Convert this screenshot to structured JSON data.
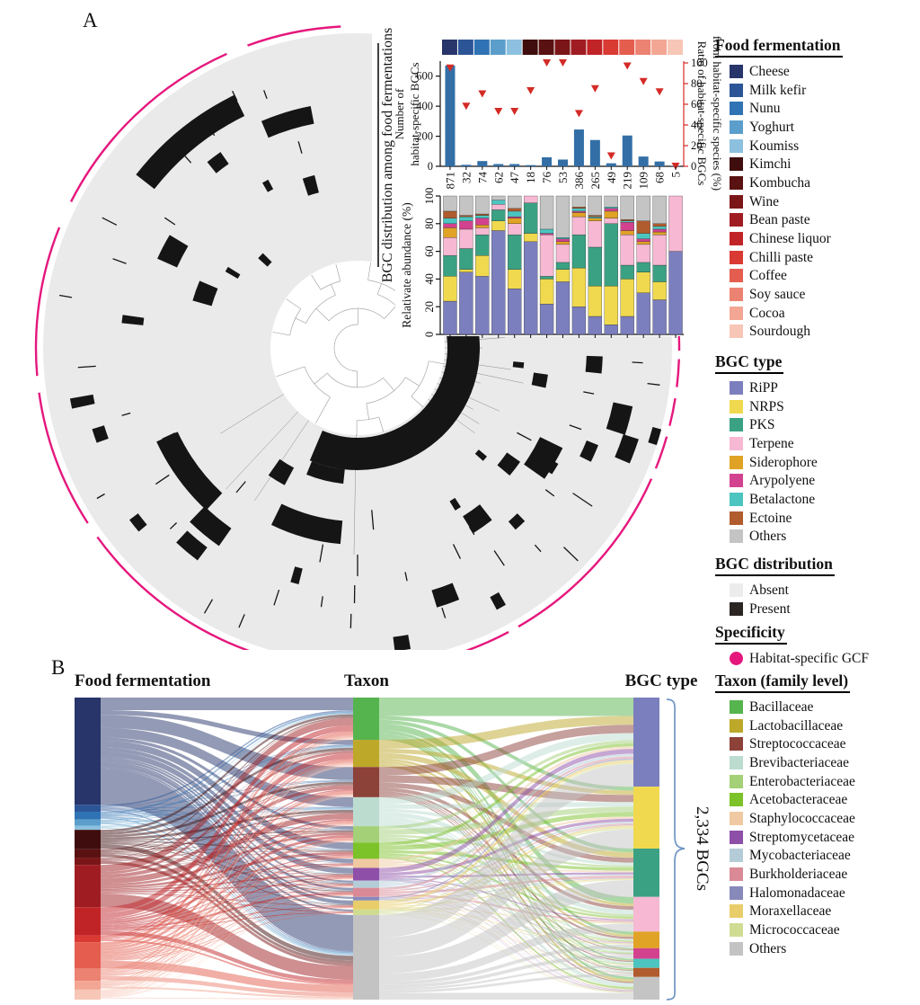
{
  "panels": {
    "a_label": "A",
    "b_label": "B"
  },
  "legends": [
    {
      "id": "food",
      "title": "Food fermentation",
      "items": [
        {
          "label": "Cheese",
          "color": "#27356b"
        },
        {
          "label": "Milk kefir",
          "color": "#2c5597"
        },
        {
          "label": "Nunu",
          "color": "#3073b4"
        },
        {
          "label": "Yoghurt",
          "color": "#5b9ecb"
        },
        {
          "label": "Koumiss",
          "color": "#8cc0de"
        },
        {
          "label": "Kimchi",
          "color": "#3f0d0d"
        },
        {
          "label": "Kombucha",
          "color": "#5a1111"
        },
        {
          "label": "Wine",
          "color": "#7b1618"
        },
        {
          "label": "Bean paste",
          "color": "#9f1d22"
        },
        {
          "label": "Chinese liquor",
          "color": "#c02427"
        },
        {
          "label": "Chilli paste",
          "color": "#d93a33"
        },
        {
          "label": "Coffee",
          "color": "#e45d4e"
        },
        {
          "label": "Soy sauce",
          "color": "#ec8271"
        },
        {
          "label": "Cocoa",
          "color": "#f2a693"
        },
        {
          "label": "Sourdough",
          "color": "#f7c6b6"
        }
      ]
    },
    {
      "id": "bgc_type",
      "title": "BGC type",
      "items": [
        {
          "label": "RiPP",
          "color": "#7b7fbd"
        },
        {
          "label": "NRPS",
          "color": "#f0d94e"
        },
        {
          "label": "PKS",
          "color": "#3ba183"
        },
        {
          "label": "Terpene",
          "color": "#f6b8d2"
        },
        {
          "label": "Siderophore",
          "color": "#e0a326"
        },
        {
          "label": "Arypolyene",
          "color": "#d2428e"
        },
        {
          "label": "Betalactone",
          "color": "#4cc5c0"
        },
        {
          "label": "Ectoine",
          "color": "#b05c2e"
        },
        {
          "label": "Others",
          "color": "#c4c4c4"
        }
      ]
    },
    {
      "id": "bgc_distribution",
      "title": "BGC distribution",
      "items": [
        {
          "label": "Absent",
          "color": "#ececec"
        },
        {
          "label": "Present",
          "color": "#2b2523"
        }
      ]
    },
    {
      "id": "specificity",
      "title": "Specificity",
      "items": [
        {
          "label": "Habitat-specific GCF",
          "color": "#e5177d",
          "shape": "circle"
        }
      ]
    },
    {
      "id": "taxon",
      "title": "Taxon (family level)",
      "items": [
        {
          "label": "Bacillaceae",
          "color": "#55b44e"
        },
        {
          "label": "Lactobacillaceae",
          "color": "#bda829"
        },
        {
          "label": "Streptococcaceae",
          "color": "#8c4139"
        },
        {
          "label": "Brevibacteriaceae",
          "color": "#bcdcd0"
        },
        {
          "label": "Enterobacteriaceae",
          "color": "#a4d077"
        },
        {
          "label": "Acetobacteraceae",
          "color": "#7cc229"
        },
        {
          "label": "Staphylococcaceae",
          "color": "#f0c9a2"
        },
        {
          "label": "Streptomycetaceae",
          "color": "#8e4fa8"
        },
        {
          "label": "Mycobacteriaceae",
          "color": "#b4ccd8"
        },
        {
          "label": "Burkholderiaceae",
          "color": "#d98a96"
        },
        {
          "label": "Halomonadaceae",
          "color": "#8789bb"
        },
        {
          "label": "Moraxellaceae",
          "color": "#e8cd6a"
        },
        {
          "label": "Micrococcaceae",
          "color": "#cfdc91"
        },
        {
          "label": "Others",
          "color": "#c3c3c3"
        }
      ]
    }
  ],
  "chart_data": [
    {
      "id": "habitat_specific_bgcs",
      "type": "bar",
      "categories": [
        "871",
        "32",
        "74",
        "62",
        "47",
        "18",
        "76",
        "53",
        "386",
        "265",
        "49",
        "219",
        "109",
        "68",
        "5"
      ],
      "values": [
        670,
        10,
        35,
        15,
        15,
        8,
        60,
        45,
        245,
        175,
        20,
        205,
        65,
        32,
        3
      ],
      "ratio_markers": [
        95,
        58,
        70,
        53,
        53,
        73,
        100,
        100,
        51,
        75,
        10,
        97,
        82,
        72,
        0
      ],
      "ylabel_line1": "Number of",
      "ylabel_line2": "habitat-specific BGCs",
      "y2label_line1": "Ratio of habitat-specific BGCs",
      "y2label_line2": "from habitat-specific species (%)",
      "yticks": [
        0,
        200,
        400,
        600
      ],
      "ylim": [
        0,
        700
      ],
      "y2ticks": [
        0,
        20,
        40,
        60,
        80,
        100
      ],
      "y2lim": [
        0,
        100
      ],
      "bar_color": "#336fa6",
      "marker_color": "#d42b26",
      "legend_position": "none"
    },
    {
      "id": "relative_abundance",
      "type": "stacked_bar",
      "categories": [
        "871",
        "32",
        "74",
        "62",
        "47",
        "18",
        "76",
        "53",
        "386",
        "265",
        "49",
        "219",
        "109",
        "68",
        "5"
      ],
      "series_order": [
        "RiPP",
        "NRPS",
        "PKS",
        "Terpene",
        "Siderophore",
        "Arypolyene",
        "Betalactone",
        "Ectoine",
        "Others"
      ],
      "stacks": [
        [
          24,
          18,
          15,
          13,
          7,
          3,
          4,
          5,
          11
        ],
        [
          45,
          2,
          15,
          14,
          0,
          6,
          3,
          1,
          14
        ],
        [
          42,
          15,
          15,
          5,
          2,
          5,
          2,
          1,
          13
        ],
        [
          75,
          7,
          8,
          4,
          0,
          0,
          3,
          0,
          3
        ],
        [
          33,
          14,
          25,
          8,
          4,
          1,
          4,
          2,
          9
        ],
        [
          67,
          6,
          22,
          5,
          0,
          0,
          0,
          0,
          0
        ],
        [
          22,
          18,
          2,
          30,
          0,
          1,
          3,
          0,
          24
        ],
        [
          38,
          9,
          5,
          13,
          2,
          2,
          1,
          0,
          30
        ],
        [
          20,
          28,
          24,
          13,
          3,
          1,
          2,
          1,
          8
        ],
        [
          13,
          22,
          28,
          19,
          2,
          0,
          1,
          1,
          14
        ],
        [
          7,
          28,
          45,
          4,
          5,
          2,
          1,
          0,
          8
        ],
        [
          13,
          27,
          10,
          22,
          3,
          6,
          1,
          1,
          17
        ],
        [
          30,
          15,
          7,
          13,
          2,
          2,
          4,
          9,
          18
        ],
        [
          25,
          13,
          12,
          22,
          2,
          2,
          2,
          2,
          20
        ],
        [
          60,
          0,
          0,
          40,
          0,
          0,
          0,
          0,
          0
        ]
      ],
      "ylabel": "Relativate abundance  (%)",
      "yticks": [
        0,
        20,
        40,
        60,
        80,
        100
      ],
      "ylim": [
        0,
        100
      ]
    },
    {
      "id": "bgc_sankey",
      "type": "sankey",
      "total_label": "2,334 BGCs",
      "columns": [
        {
          "title": "Food fermentation",
          "legend_ref": "food",
          "fractions": [
            0.355,
            0.023,
            0.026,
            0.02,
            0.014,
            0.064,
            0.029,
            0.023,
            0.14,
            0.093,
            0.023,
            0.087,
            0.041,
            0.029,
            0.033
          ]
        },
        {
          "title": "Taxon",
          "legend_ref": "taxon",
          "fractions": [
            0.14,
            0.09,
            0.1,
            0.096,
            0.054,
            0.054,
            0.03,
            0.042,
            0.024,
            0.03,
            0.012,
            0.03,
            0.018,
            0.28
          ]
        },
        {
          "title": "BGC type",
          "legend_ref": "bgc_type",
          "fractions": [
            0.295,
            0.205,
            0.16,
            0.115,
            0.055,
            0.035,
            0.03,
            0.03,
            0.075
          ]
        }
      ]
    },
    {
      "id": "circular_bgc_presence",
      "type": "heatmap",
      "axis_label": "BGC distribution among food fermentations",
      "absent_color": "#eaeaea",
      "present_color": "#151515",
      "specific_color": "#e5177d",
      "magenta_segments": [
        [
          357,
          360.5
        ],
        [
          2,
          7
        ],
        [
          9,
          14
        ],
        [
          16,
          22
        ],
        [
          24,
          60
        ],
        [
          62,
          94
        ],
        [
          97,
          144
        ],
        [
          147,
          172
        ],
        [
          175,
          202
        ],
        [
          207,
          246
        ],
        [
          250,
          267
        ]
      ],
      "marks": [
        [
          218,
          26,
          300,
          26
        ],
        [
          204,
          7,
          232,
          24
        ],
        [
          247,
          12,
          264,
          20
        ],
        [
          231,
          4,
          258,
          16
        ],
        [
          133,
          22,
          234,
          26
        ],
        [
          95,
          21,
          206,
          26
        ],
        [
          196,
          7,
          180,
          22
        ],
        [
          252,
          4,
          188,
          20
        ],
        [
          26,
          9,
          240,
          28
        ],
        [
          12,
          6,
          302,
          22
        ],
        [
          18,
          5,
          320,
          18
        ],
        [
          8,
          4,
          206,
          16
        ],
        [
          52,
          6,
          232,
          22
        ],
        [
          35,
          5,
          212,
          18
        ],
        [
          118,
          7,
          162,
          22
        ],
        [
          125,
          9,
          257,
          24
        ],
        [
          127,
          6,
          287,
          18
        ],
        [
          68,
          5,
          292,
          20
        ],
        [
          2,
          4,
          264,
          18
        ],
        [
          22,
          4,
          282,
          14
        ],
        [
          30,
          3,
          252,
          12
        ],
        [
          46,
          3,
          262,
          12
        ],
        [
          80,
          3,
          332,
          16
        ],
        [
          60,
          2,
          322,
          16
        ],
        [
          104,
          2,
          262,
          18
        ],
        [
          140,
          3,
          312,
          12
        ],
        [
          160,
          3,
          302,
          14
        ],
        [
          168,
          2,
          312,
          26
        ],
        [
          186,
          2,
          252,
          24
        ],
        [
          210,
          2,
          162,
          16
        ],
        [
          222,
          3,
          142,
          14
        ],
        [
          240,
          2,
          206,
          12
        ],
        [
          15,
          3,
          345,
          10
        ],
        [
          5,
          2,
          180,
          12
        ],
        [
          40,
          2,
          182,
          12
        ],
        [
          57,
          2,
          205,
          12
        ],
        [
          34,
          0,
          302,
          26
        ],
        [
          44,
          0,
          330,
          22
        ],
        [
          56,
          0,
          282,
          20
        ],
        [
          64,
          0,
          252,
          18
        ],
        [
          85,
          0,
          192,
          22
        ],
        [
          90,
          0,
          242,
          24
        ],
        [
          90.7,
          0,
          274,
          20
        ],
        [
          91.4,
          0,
          304,
          16
        ],
        [
          100,
          0,
          232,
          20
        ],
        [
          108,
          0,
          292,
          18
        ],
        [
          113,
          0,
          330,
          16
        ],
        [
          120,
          0,
          332,
          18
        ],
        [
          130,
          0,
          202,
          16
        ],
        [
          146,
          0,
          262,
          18
        ],
        [
          155,
          0,
          232,
          16
        ],
        [
          176,
          0,
          302,
          20
        ],
        [
          200,
          0,
          282,
          16
        ],
        [
          214,
          0,
          252,
          14
        ],
        [
          236,
          0,
          292,
          14
        ],
        [
          244,
          0,
          312,
          12
        ],
        [
          254,
          0,
          232,
          14
        ],
        [
          207,
          0,
          310,
          18
        ],
        [
          190,
          0,
          330,
          14
        ],
        [
          28,
          0,
          210,
          18
        ],
        [
          20,
          0,
          258,
          14
        ],
        [
          16,
          0,
          298,
          12
        ],
        [
          11,
          0,
          262,
          12
        ],
        [
          7,
          0,
          332,
          14
        ],
        [
          3,
          0,
          312,
          12
        ],
        [
          48,
          0,
          300,
          10
        ],
        [
          37,
          0,
          268,
          12
        ],
        [
          58,
          0,
          240,
          10
        ],
        [
          72,
          0,
          310,
          12
        ],
        [
          78,
          0,
          260,
          10
        ],
        [
          98,
          0,
          285,
          12
        ],
        [
          136,
          0,
          285,
          10
        ],
        [
          150,
          0,
          330,
          10
        ],
        [
          164,
          0,
          268,
          10
        ],
        [
          228,
          0,
          282,
          10
        ],
        [
          258,
          0,
          262,
          12
        ],
        [
          250,
          0,
          300,
          10
        ]
      ]
    }
  ]
}
